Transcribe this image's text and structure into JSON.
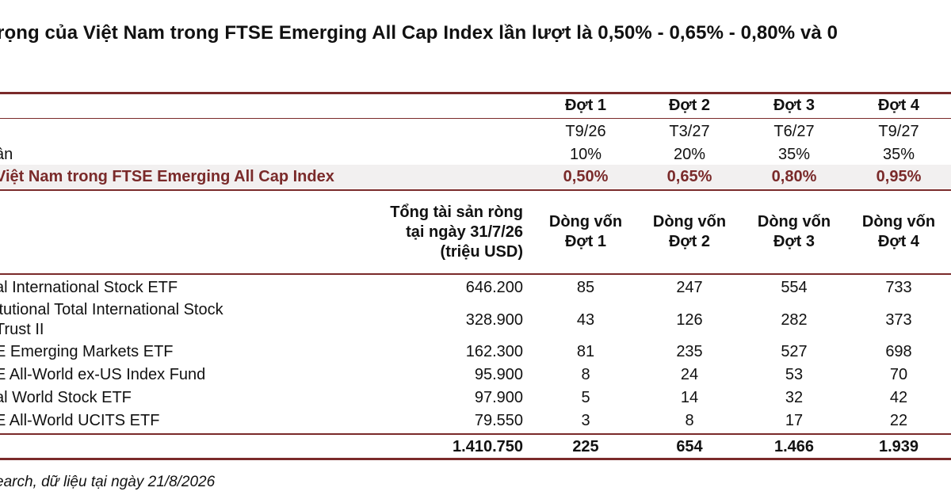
{
  "page": {
    "title": "rọng của Việt Nam trong FTSE Emerging All Cap Index lần lượt là 0,50% - 0,65% - 0,80% và 0",
    "footnote": "earch, dữ liệu tại ngày 21/8/2026"
  },
  "schedule": {
    "headers": [
      "Đợt 1",
      "Đợt 2",
      "Đợt 3",
      "Đợt 4"
    ],
    "dates": [
      "T9/26",
      "T3/27",
      "T6/27",
      "T9/27"
    ],
    "rows": [
      {
        "label": "ân",
        "values": [
          "10%",
          "20%",
          "35%",
          "35%"
        ]
      },
      {
        "label": "Việt Nam trong FTSE Emerging All Cap Index",
        "values": [
          "0,50%",
          "0,65%",
          "0,80%",
          "0,95%"
        ]
      }
    ]
  },
  "etf_table": {
    "nav_header_lines": [
      "Tổng tài sản ròng",
      "tại ngày 31/7/26",
      "(triệu USD)"
    ],
    "flow_headers": [
      [
        "Dòng vốn",
        "Đợt 1"
      ],
      [
        "Dòng vốn",
        "Đợt 2"
      ],
      [
        "Dòng vốn",
        "Đợt 3"
      ],
      [
        "Dòng vốn",
        "Đợt 4"
      ]
    ],
    "rows": [
      {
        "name": [
          "al International Stock ETF"
        ],
        "nav": "646.200",
        "flows": [
          "85",
          "247",
          "554",
          "733"
        ]
      },
      {
        "name": [
          "itutional Total International Stock",
          "Trust II"
        ],
        "nav": "328.900",
        "flows": [
          "43",
          "126",
          "282",
          "373"
        ]
      },
      {
        "name": [
          "E Emerging Markets ETF"
        ],
        "nav": "162.300",
        "flows": [
          "81",
          "235",
          "527",
          "698"
        ]
      },
      {
        "name": [
          "E All-World ex-US Index Fund"
        ],
        "nav": "95.900",
        "flows": [
          "8",
          "24",
          "53",
          "70"
        ]
      },
      {
        "name": [
          "al World Stock ETF"
        ],
        "nav": "97.900",
        "flows": [
          "5",
          "14",
          "32",
          "42"
        ]
      },
      {
        "name": [
          "E All-World UCITS ETF"
        ],
        "nav": "79.550",
        "flows": [
          "3",
          "8",
          "17",
          "22"
        ]
      }
    ],
    "total": {
      "nav": "1.410.750",
      "flows": [
        "225",
        "654",
        "1.466",
        "1.939"
      ]
    }
  },
  "colors": {
    "accent": "#7a2a2a",
    "highlight_row": "#f2f0f0"
  }
}
